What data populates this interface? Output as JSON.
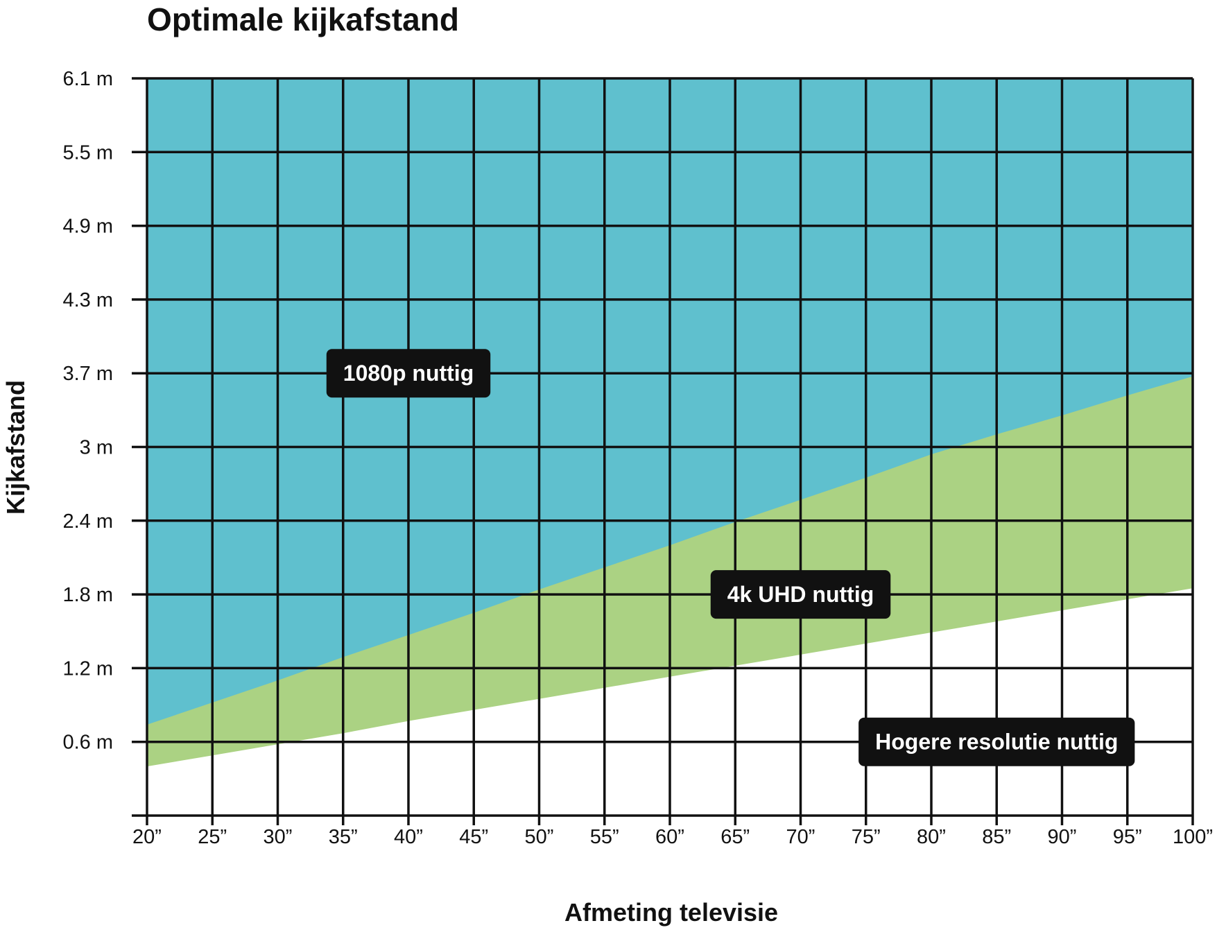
{
  "chart_data": {
    "type": "area",
    "title": "Optimale kijkafstand",
    "xlabel": "Afmeting televisie",
    "ylabel": "Kijkafstand",
    "x": [
      20,
      25,
      30,
      35,
      40,
      45,
      50,
      55,
      60,
      65,
      70,
      75,
      80,
      85,
      90,
      95,
      100
    ],
    "x_tick_labels": [
      "20”",
      "25”",
      "30”",
      "35”",
      "40”",
      "45”",
      "50”",
      "55”",
      "60”",
      "65”",
      "70”",
      "75”",
      "80”",
      "85”",
      "90”",
      "95”",
      "100”"
    ],
    "y_ticks": [
      0.6,
      1.2,
      1.8,
      2.4,
      3.0,
      3.7,
      4.3,
      4.9,
      5.5,
      6.1
    ],
    "y_tick_labels": [
      "0.6 m",
      "1.2 m",
      "1.8 m",
      "2.4 m",
      "3 m",
      "3.7 m",
      "4.3 m",
      "4.9 m",
      "5.5 m",
      "6.1 m"
    ],
    "xlim": [
      20,
      100
    ],
    "ylim": [
      0,
      6.1
    ],
    "grid": true,
    "series": [
      {
        "name": "1080p nuttig",
        "color": "#5fc0ce",
        "lower_values": [
          0.74,
          0.92,
          1.1,
          1.29,
          1.47,
          1.65,
          1.84,
          2.02,
          2.2,
          2.39,
          2.57,
          2.75,
          2.94,
          3.12,
          3.3,
          3.49,
          3.67
        ],
        "upper_value": 6.1
      },
      {
        "name": "4k UHD nuttig",
        "color": "#abd283",
        "lower_values": [
          0.4,
          0.49,
          0.58,
          0.67,
          0.77,
          0.86,
          0.95,
          1.04,
          1.13,
          1.22,
          1.31,
          1.4,
          1.49,
          1.58,
          1.67,
          1.76,
          1.85
        ]
      },
      {
        "name": "Hogere resolutie nuttig",
        "color": "#ffffff"
      }
    ],
    "annotations": [
      {
        "text": "1080p nuttig",
        "x": 40,
        "y": 3.7
      },
      {
        "text": "4k UHD nuttig",
        "x": 70,
        "y": 1.8
      },
      {
        "text": "Hogere resolutie nuttig",
        "x": 85,
        "y": 0.6
      }
    ]
  }
}
